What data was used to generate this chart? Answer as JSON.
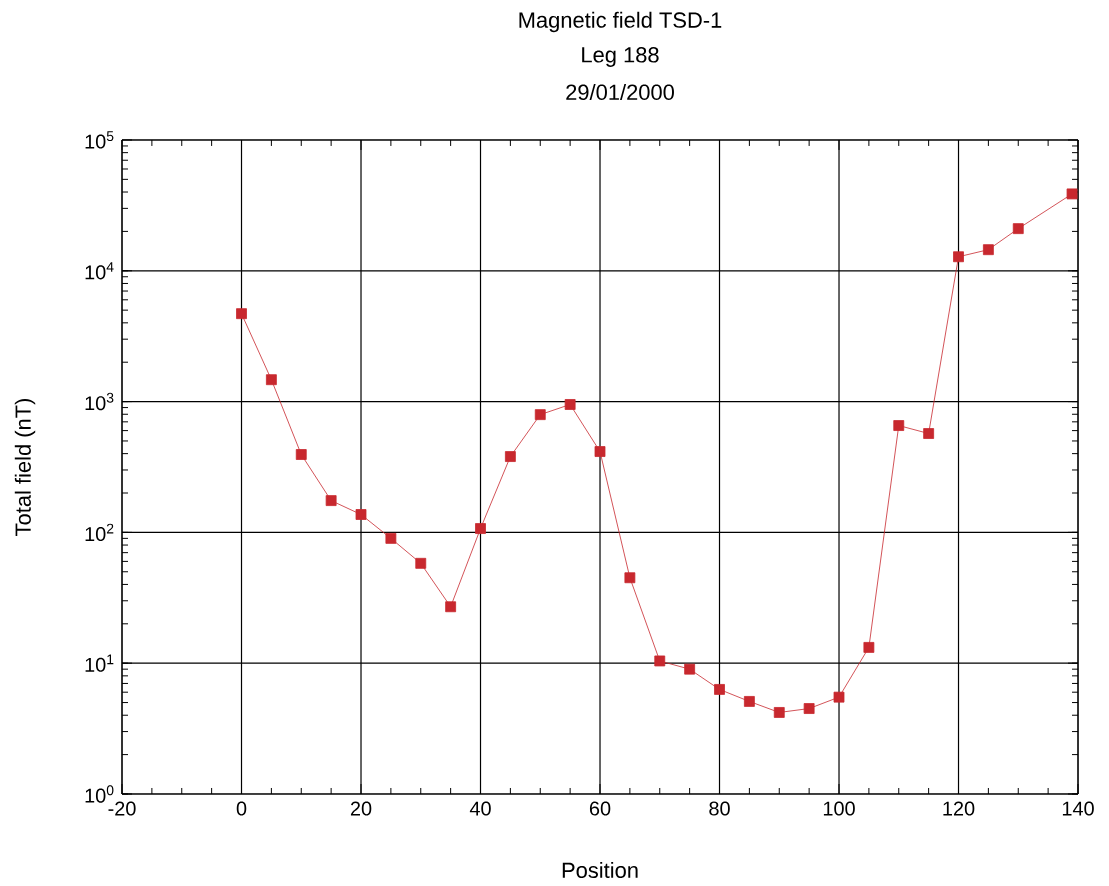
{
  "chart_data": {
    "type": "line",
    "title": "Magnetic field TSD-1",
    "subtitle": "Leg 188",
    "annotations": [
      "29/01/2000"
    ],
    "xlabel": "Position",
    "ylabel": "Total field (nT)",
    "x": [
      0,
      5,
      10,
      15,
      20,
      25,
      30,
      35,
      40,
      45,
      50,
      55,
      60,
      65,
      70,
      75,
      80,
      85,
      90,
      95,
      100,
      105,
      110,
      115,
      120,
      125,
      130,
      139
    ],
    "series": [
      {
        "color": "#c8282e",
        "values": [
          4700,
          1470,
          394,
          175,
          137,
          90,
          58,
          27,
          107,
          380,
          795,
          950,
          415,
          45,
          10.4,
          9.0,
          6.3,
          5.1,
          4.2,
          4.5,
          5.5,
          13.2,
          656,
          570,
          12800,
          14500,
          21000,
          38700
        ]
      }
    ],
    "log": true,
    "xlim": [
      -20,
      140
    ],
    "ylim": [
      1,
      100000
    ],
    "xticks": [
      -20,
      0,
      20,
      40,
      60,
      80,
      100,
      120,
      140
    ],
    "yticks": [
      {
        "value": 1,
        "label": "10$^{0}$"
      },
      {
        "value": 10,
        "label": "10$^{1}$"
      },
      {
        "value": 100,
        "label": "10$^{2}$"
      },
      {
        "value": 1000,
        "label": "10$^{3}$"
      },
      {
        "value": 10000,
        "label": "10$^{4}$"
      },
      {
        "value": 100000,
        "label": "10$^{5}$"
      }
    ],
    "grid": true,
    "marker": "square",
    "line_style": "solid"
  }
}
